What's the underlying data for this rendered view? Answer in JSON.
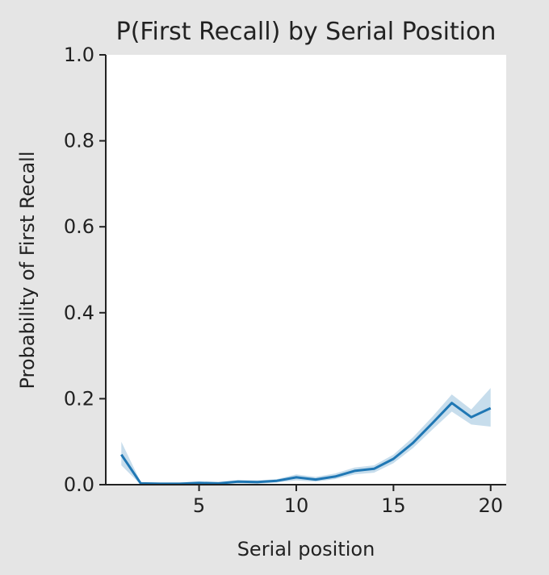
{
  "chart_data": {
    "type": "line",
    "title": "P(First Recall) by Serial Position",
    "xlabel": "Serial position",
    "ylabel": "Probability of First Recall",
    "xlim": [
      0.2,
      20.8
    ],
    "ylim": [
      0.0,
      1.0
    ],
    "xticks": [
      5,
      10,
      15,
      20
    ],
    "yticks": [
      0.0,
      0.2,
      0.4,
      0.6,
      0.8,
      1.0
    ],
    "xtick_labels": [
      "5",
      "10",
      "15",
      "20"
    ],
    "ytick_labels": [
      "0.0",
      "0.2",
      "0.4",
      "0.6",
      "0.8",
      "1.0"
    ],
    "grid": false,
    "series": [
      {
        "x": [
          1,
          2,
          3,
          4,
          5,
          6,
          7,
          8,
          9,
          10,
          11,
          12,
          13,
          14,
          15,
          16,
          17,
          18,
          19,
          20
        ],
        "values": [
          0.07,
          0.003,
          0.002,
          0.002,
          0.004,
          0.003,
          0.007,
          0.006,
          0.009,
          0.017,
          0.012,
          0.019,
          0.032,
          0.037,
          0.06,
          0.097,
          0.143,
          0.19,
          0.157,
          0.178
        ],
        "ci_lower": [
          0.045,
          0.0,
          0.0,
          0.0,
          0.001,
          0.001,
          0.003,
          0.002,
          0.005,
          0.01,
          0.007,
          0.013,
          0.024,
          0.028,
          0.05,
          0.085,
          0.128,
          0.17,
          0.14,
          0.135
        ],
        "ci_upper": [
          0.1,
          0.006,
          0.005,
          0.005,
          0.008,
          0.006,
          0.011,
          0.01,
          0.013,
          0.024,
          0.018,
          0.026,
          0.04,
          0.045,
          0.07,
          0.11,
          0.158,
          0.21,
          0.175,
          0.225
        ],
        "color": "#1f77b4"
      }
    ]
  }
}
